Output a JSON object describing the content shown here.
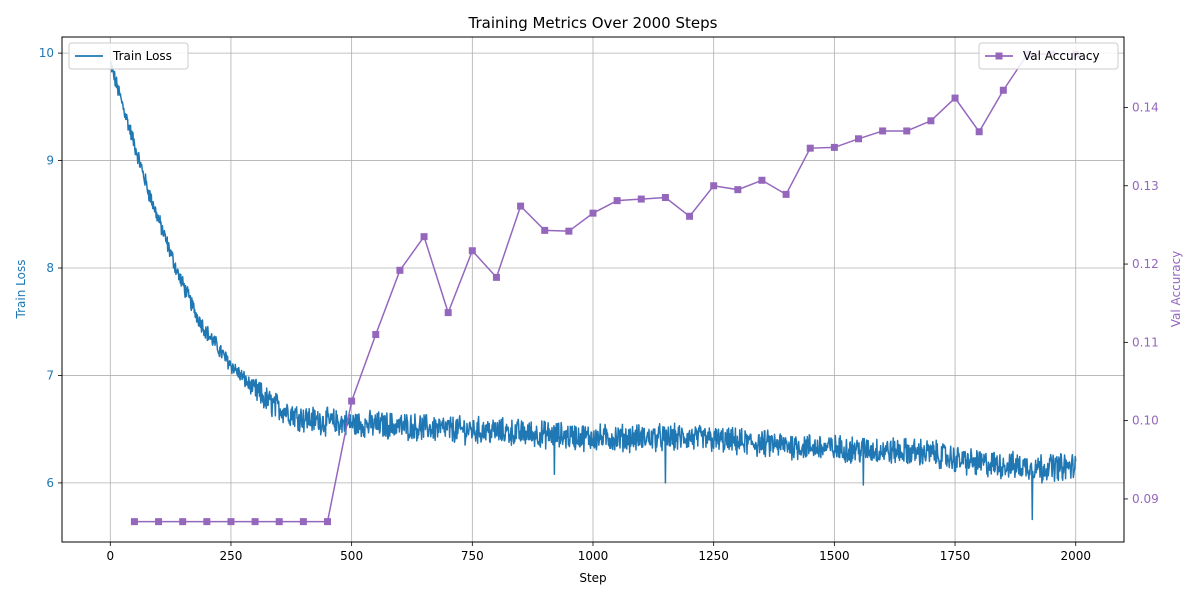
{
  "chart_data": {
    "type": "line",
    "title": "Training Metrics Over 2000 Steps",
    "xlabel": "Step",
    "ylabel_left": "Train Loss",
    "ylabel_right": "Val Accuracy",
    "xlim": [
      -100,
      2100
    ],
    "ylim_left": [
      5.45,
      10.15
    ],
    "ylim_right": [
      0.0845,
      0.149
    ],
    "x_ticks": [
      0,
      250,
      500,
      750,
      1000,
      1250,
      1500,
      1750,
      2000
    ],
    "y_left_ticks": [
      6,
      7,
      8,
      9,
      10
    ],
    "y_right_ticks": [
      0.09,
      0.1,
      0.11,
      0.12,
      0.13,
      0.14
    ],
    "grid": true,
    "colors": {
      "train": "#1f77b4",
      "val": "#9467bd"
    },
    "series": [
      {
        "name": "Train Loss",
        "axis": "left",
        "marker": "none",
        "x_start": 0,
        "x_end": 2000,
        "x_step": 1,
        "trend_x": [
          0,
          20,
          40,
          60,
          80,
          100,
          120,
          140,
          160,
          180,
          200,
          220,
          240,
          260,
          280,
          300,
          320,
          340,
          360,
          380,
          400,
          450,
          500,
          600,
          700,
          800,
          900,
          1000,
          1100,
          1200,
          1300,
          1400,
          1500,
          1600,
          1700,
          1750,
          1800,
          1900,
          2000
        ],
        "trend_y": [
          9.9,
          9.6,
          9.3,
          9.0,
          8.7,
          8.45,
          8.2,
          7.95,
          7.75,
          7.55,
          7.4,
          7.28,
          7.15,
          7.05,
          6.95,
          6.86,
          6.78,
          6.72,
          6.68,
          6.64,
          6.6,
          6.57,
          6.55,
          6.53,
          6.5,
          6.48,
          6.45,
          6.42,
          6.42,
          6.42,
          6.38,
          6.35,
          6.32,
          6.3,
          6.28,
          6.22,
          6.18,
          6.15,
          6.15
        ],
        "noise_amp": 0.11,
        "dips": [
          [
            1910,
            5.66
          ],
          [
            1930,
            6.0
          ],
          [
            1150,
            6.0
          ],
          [
            1560,
            5.98
          ],
          [
            920,
            6.08
          ]
        ]
      },
      {
        "name": "Val Accuracy",
        "axis": "right",
        "marker": "square",
        "x": [
          50,
          100,
          150,
          200,
          250,
          300,
          350,
          400,
          450,
          500,
          550,
          600,
          650,
          700,
          750,
          800,
          850,
          900,
          950,
          1000,
          1050,
          1100,
          1150,
          1200,
          1250,
          1300,
          1350,
          1400,
          1450,
          1500,
          1550,
          1600,
          1650,
          1700,
          1750,
          1800,
          1850,
          1900,
          1950,
          2000
        ],
        "values": [
          0.0871,
          0.0871,
          0.0871,
          0.0871,
          0.0871,
          0.0871,
          0.0871,
          0.0871,
          0.0871,
          0.1025,
          0.111,
          0.1192,
          0.1235,
          0.1138,
          0.1217,
          0.1183,
          0.1274,
          0.1243,
          0.1242,
          0.1265,
          0.1281,
          0.1283,
          0.1285,
          0.1261,
          0.13,
          0.1295,
          0.1307,
          0.1289,
          0.1348,
          0.1349,
          0.136,
          0.137,
          0.137,
          0.1383,
          0.1412,
          0.1369,
          0.1422,
          0.1468,
          0.1468,
          0.1468
        ]
      }
    ],
    "legend_left": {
      "label": "Train Loss",
      "placement": "upper-left"
    },
    "legend_right": {
      "label": "Val Accuracy",
      "placement": "upper-right"
    }
  }
}
